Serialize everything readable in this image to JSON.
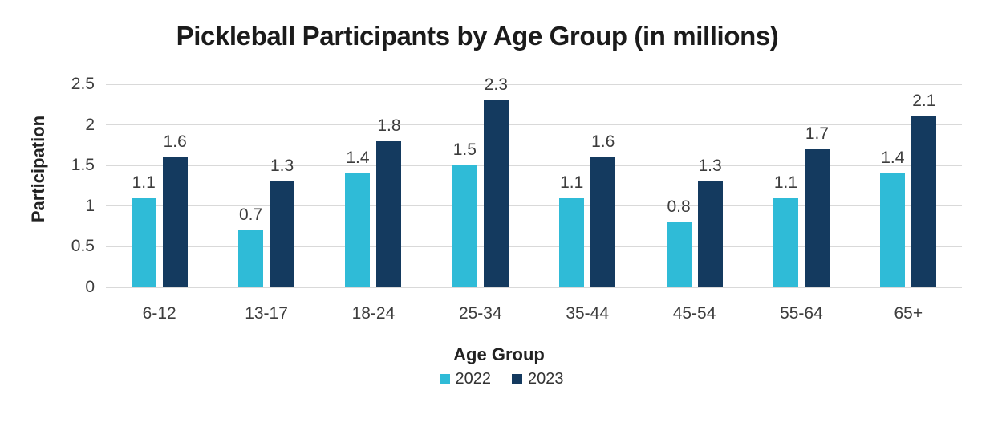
{
  "title": "Pickleball Participants by Age Group (in millions)",
  "chart_data": {
    "type": "bar",
    "title": "Pickleball Participants by Age Group (in millions)",
    "categories": [
      "6-12",
      "13-17",
      "18-24",
      "25-34",
      "35-44",
      "45-54",
      "55-64",
      "65+"
    ],
    "series": [
      {
        "name": "2022",
        "color": "#2fbbd7",
        "values": [
          1.1,
          0.7,
          1.4,
          1.5,
          1.1,
          0.8,
          1.1,
          1.4
        ]
      },
      {
        "name": "2023",
        "color": "#143a5f",
        "values": [
          1.6,
          1.3,
          1.8,
          2.3,
          1.6,
          1.3,
          1.7,
          2.1
        ]
      }
    ],
    "xlabel": "Age Group",
    "ylabel": "Participation",
    "ylim": [
      0,
      2.5
    ],
    "yticks": [
      0,
      0.5,
      1,
      1.5,
      2,
      2.5
    ],
    "ytick_labels": [
      "0",
      "0.5",
      "1",
      "1.5",
      "2",
      "2.5"
    ],
    "grid": true,
    "data_labels": true,
    "legend_position": "bottom"
  },
  "colors": {
    "background": "#ffffff",
    "gridline": "#d9d9d9",
    "tick_text": "#3d3d3d",
    "title_text": "#1b1b1b",
    "axis_title_text": "#222222",
    "series_2022": "#2fbbd7",
    "series_2023": "#143a5f"
  }
}
